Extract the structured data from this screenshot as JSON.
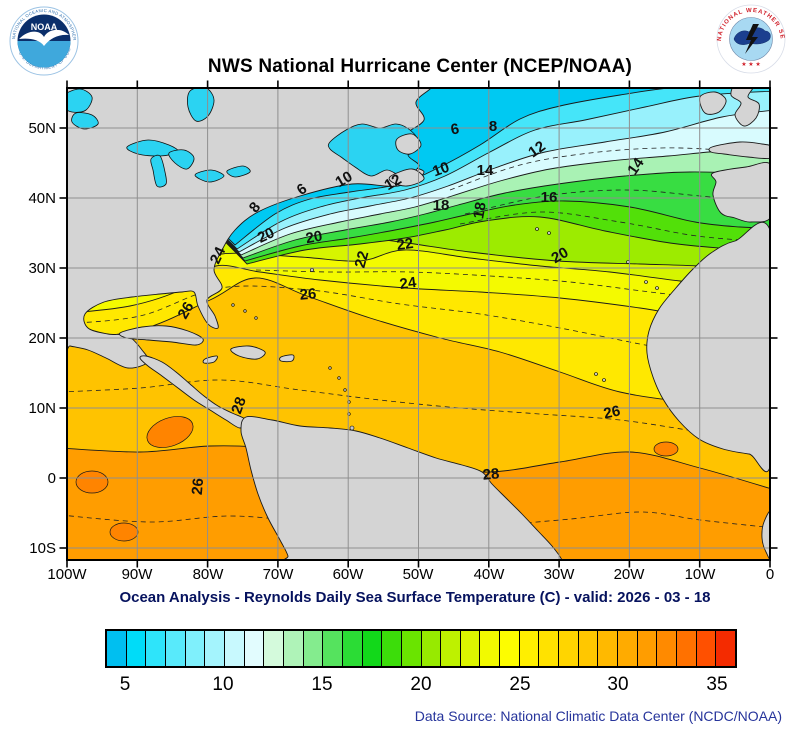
{
  "header": {
    "title": "NWS National Hurricane Center (NCEP/NOAA)",
    "noaa_logo": {
      "acronym": "NOAA",
      "ring_top": "NATIONAL OCEANIC AND ATMOSPHERIC ADMINISTRATION",
      "ring_bottom": "U.S. DEPARTMENT OF COMMERCE"
    },
    "nws_logo": {
      "ring_text": "NATIONAL WEATHER SERVICE",
      "stars": "★ ★ ★"
    }
  },
  "axes": {
    "x_labels": [
      "100W",
      "90W",
      "80W",
      "70W",
      "60W",
      "50W",
      "40W",
      "30W",
      "20W",
      "10W",
      "0"
    ],
    "y_labels": [
      "50N",
      "40N",
      "30N",
      "20N",
      "10N",
      "0",
      "10S"
    ]
  },
  "caption": "Ocean Analysis - Reynolds Daily Sea Surface Temperature (C) - valid: 2026 - 03 - 18",
  "footer": {
    "data_source": "Data Source: National Climatic Data Center (NCDC/NOAA)"
  },
  "colorbar": {
    "units": "C",
    "min": 4,
    "max": 36,
    "tick_labels": [
      "5",
      "10",
      "15",
      "20",
      "25",
      "30",
      "35"
    ],
    "colors": [
      "#00bff0",
      "#00dcf8",
      "#2ee4fa",
      "#58eafb",
      "#7ff0fc",
      "#a4f4fd",
      "#c8f9fe",
      "#e2fcfe",
      "#d4fadc",
      "#aff3b8",
      "#84ec8e",
      "#55e35e",
      "#2bdc35",
      "#12d81a",
      "#3cdd0a",
      "#6ae400",
      "#97ea00",
      "#bef100",
      "#ddf600",
      "#f2fa00",
      "#fdfd00",
      "#ffef00",
      "#ffe200",
      "#ffd500",
      "#ffc700",
      "#ffb900",
      "#ffab00",
      "#ff9d00",
      "#ff8a00",
      "#ff7100",
      "#ff5000",
      "#f42b00"
    ]
  },
  "map": {
    "contour_labels": [
      {
        "text": "6"
      },
      {
        "text": "8"
      },
      {
        "text": "10"
      },
      {
        "text": "12"
      },
      {
        "text": "14"
      },
      {
        "text": "14"
      },
      {
        "text": "16"
      },
      {
        "text": "18"
      },
      {
        "text": "18"
      },
      {
        "text": "6"
      },
      {
        "text": "8"
      },
      {
        "text": "10"
      },
      {
        "text": "12"
      },
      {
        "text": "20"
      },
      {
        "text": "20"
      },
      {
        "text": "20"
      },
      {
        "text": "22"
      },
      {
        "text": "22"
      },
      {
        "text": "24"
      },
      {
        "text": "24"
      },
      {
        "text": "26"
      },
      {
        "text": "26"
      },
      {
        "text": "26"
      },
      {
        "text": "26"
      },
      {
        "text": "28"
      },
      {
        "text": "28"
      }
    ]
  },
  "chart_data": {
    "type": "heatmap",
    "subtype": "filled-contour-map",
    "title": "NWS National Hurricane Center (NCEP/NOAA)",
    "caption": "Ocean Analysis - Reynolds Daily Sea Surface Temperature (C) - valid: 2026 - 03 - 18",
    "variable": "Sea Surface Temperature (C)",
    "valid_date": "2026 - 03 - 18",
    "x_ticks": [
      "100W",
      "90W",
      "80W",
      "70W",
      "60W",
      "50W",
      "40W",
      "30W",
      "20W",
      "10W",
      "0"
    ],
    "y_ticks": [
      "50N",
      "40N",
      "30N",
      "20N",
      "10N",
      "0",
      "10S"
    ],
    "grid": true,
    "labeled_contours_c": [
      6,
      8,
      10,
      12,
      14,
      16,
      18,
      20,
      22,
      24,
      26,
      28
    ],
    "contour_style": "solid even degrees, dashed intermediate",
    "colorbar": {
      "min": 4,
      "max": 36,
      "step": 1,
      "tick_values": [
        5,
        10,
        15,
        20,
        25,
        30,
        35
      ]
    },
    "pattern": "cold cyan water (<8C) in NW Atlantic off New England and Canada, tight Gulf Stream gradient hugging the US east coast to Cape Hatteras, green 12-18C mid-latitudes toward Europe, yellow 20-26C subtropics, orange 26-29C in Caribbean, tropical Atlantic and eastern Pacific",
    "land_color": "#d4d4d4",
    "data_source": "National Climatic Data Center (NCDC/NOAA)"
  }
}
